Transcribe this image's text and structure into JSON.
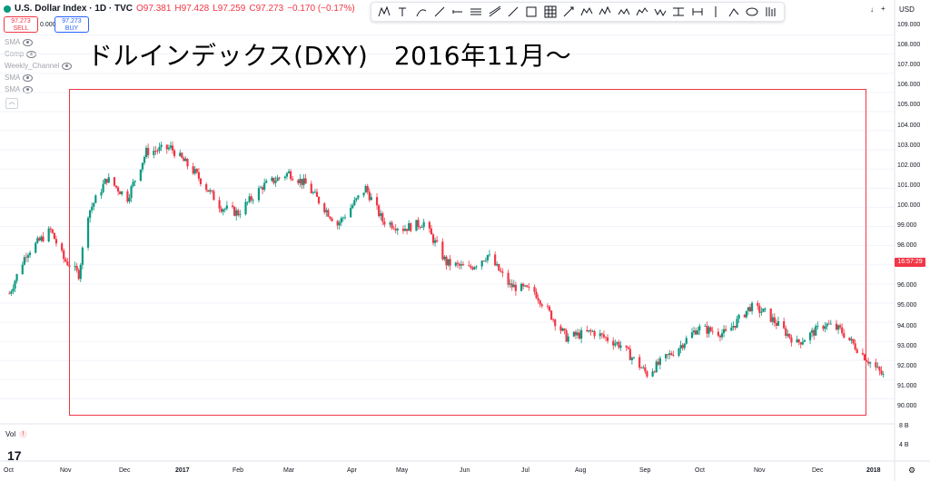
{
  "legend": {
    "symbol": "U.S. Dollar Index · 1D · TVC",
    "open": "O97.381",
    "high": "H97.428",
    "low": "L97.259",
    "close": "C97.273",
    "change": "−0.170 (−0.17%)"
  },
  "trade": {
    "sell_price": "97.273",
    "sell_label": "SELL",
    "spread": "0.000",
    "buy_price": "97.273",
    "buy_label": "BUY"
  },
  "indicators": [
    {
      "name": "SMA"
    },
    {
      "name": "Comp"
    },
    {
      "name": "Weekly_Channel"
    },
    {
      "name": "SMA"
    },
    {
      "name": "SMA"
    }
  ],
  "caption": "ドルインデックス(DXY)　2016年11月～",
  "currency": "USD",
  "price_axis": [
    "109.000",
    "108.000",
    "107.000",
    "106.000",
    "105.000",
    "104.000",
    "103.000",
    "102.000",
    "101.000",
    "100.000",
    "99.000",
    "98.000",
    "97.000",
    "96.000",
    "95.000",
    "94.000",
    "93.000",
    "92.000",
    "91.000",
    "90.000"
  ],
  "last_price_time": "16:57:29",
  "volume_axis": [
    "8 B",
    "4 B"
  ],
  "volume_label": "Vol",
  "time_axis": [
    "Oct",
    "Nov",
    "Dec",
    "2017",
    "Feb",
    "Mar",
    "Apr",
    "May",
    "Jun",
    "Jul",
    "Aug",
    "Sep",
    "Oct",
    "Nov",
    "Dec",
    "2018"
  ],
  "colors": {
    "up": "#089981",
    "down": "#f23645",
    "box": "#f23645"
  },
  "tools": [
    "xabcd-pattern-icon",
    "text-icon",
    "brush-icon",
    "pen-icon",
    "horizontal-ray-icon",
    "parallel-channel-icon",
    "regression-trend-icon",
    "trend-line-icon",
    "rectangle-icon",
    "table-icon",
    "long-position-icon",
    "abcd-pattern-icon",
    "elliott-wave-icon",
    "head-shoulders-icon",
    "three-drives-icon",
    "elliott-correction-icon",
    "price-range-icon",
    "date-range-icon",
    "vertical-line-icon",
    "anchored-vwap-icon",
    "ellipse-icon",
    "bars-pattern-icon"
  ],
  "chart_data": {
    "type": "candlestick",
    "instrument": "U.S. Dollar Index",
    "interval": "1D",
    "ylim": [
      89.5,
      109.5
    ],
    "x_range": [
      "2016-10",
      "2018-01"
    ],
    "series": [
      {
        "date": "2016-10-03",
        "close": 95.5
      },
      {
        "date": "2016-10-12",
        "close": 97.6
      },
      {
        "date": "2016-10-25",
        "close": 98.8
      },
      {
        "date": "2016-11-01",
        "close": 97.3
      },
      {
        "date": "2016-11-09",
        "close": 96.5
      },
      {
        "date": "2016-11-14",
        "close": 99.7
      },
      {
        "date": "2016-11-24",
        "close": 101.5
      },
      {
        "date": "2016-12-05",
        "close": 100.5
      },
      {
        "date": "2016-12-15",
        "close": 102.9
      },
      {
        "date": "2016-12-28",
        "close": 103.1
      },
      {
        "date": "2017-01-10",
        "close": 101.8
      },
      {
        "date": "2017-01-24",
        "close": 100.0
      },
      {
        "date": "2017-02-02",
        "close": 99.7
      },
      {
        "date": "2017-02-15",
        "close": 101.1
      },
      {
        "date": "2017-03-01",
        "close": 101.8
      },
      {
        "date": "2017-03-10",
        "close": 101.2
      },
      {
        "date": "2017-03-27",
        "close": 99.1
      },
      {
        "date": "2017-04-11",
        "close": 101.0
      },
      {
        "date": "2017-04-20",
        "close": 99.3
      },
      {
        "date": "2017-05-01",
        "close": 98.9
      },
      {
        "date": "2017-05-12",
        "close": 99.2
      },
      {
        "date": "2017-05-24",
        "close": 97.1
      },
      {
        "date": "2017-06-05",
        "close": 96.8
      },
      {
        "date": "2017-06-15",
        "close": 97.5
      },
      {
        "date": "2017-06-27",
        "close": 95.9
      },
      {
        "date": "2017-07-10",
        "close": 95.6
      },
      {
        "date": "2017-07-27",
        "close": 93.2
      },
      {
        "date": "2017-08-10",
        "close": 93.5
      },
      {
        "date": "2017-08-25",
        "close": 92.8
      },
      {
        "date": "2017-09-08",
        "close": 91.3
      },
      {
        "date": "2017-09-25",
        "close": 92.7
      },
      {
        "date": "2017-10-05",
        "close": 93.7
      },
      {
        "date": "2017-10-20",
        "close": 93.4
      },
      {
        "date": "2017-11-02",
        "close": 94.8
      },
      {
        "date": "2017-11-10",
        "close": 94.5
      },
      {
        "date": "2017-11-27",
        "close": 92.9
      },
      {
        "date": "2017-12-12",
        "close": 93.9
      },
      {
        "date": "2017-12-20",
        "close": 93.6
      },
      {
        "date": "2018-01-03",
        "close": 92.1
      },
      {
        "date": "2018-01-12",
        "close": 91.2
      }
    ],
    "last": 97.273
  }
}
